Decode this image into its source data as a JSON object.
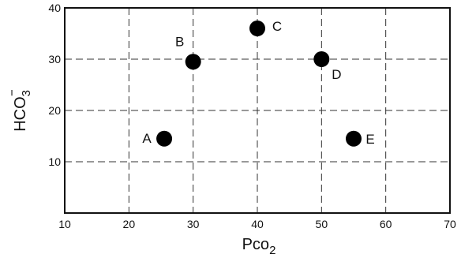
{
  "chart_data": {
    "type": "scatter",
    "title": "",
    "xlabel": {
      "main": "Pco",
      "sub": "2"
    },
    "ylabel": {
      "main": "HCO",
      "sub": "3",
      "sup": "−"
    },
    "xlim": [
      10,
      70
    ],
    "ylim": [
      0,
      40
    ],
    "xticks": [
      10,
      20,
      30,
      40,
      50,
      60,
      70
    ],
    "xtick_labels": [
      "10",
      "20",
      "30",
      "40",
      "50",
      "60",
      "70"
    ],
    "yticks": [
      10,
      20,
      30,
      40
    ],
    "ytick_labels": [
      "10",
      "20",
      "30",
      "40"
    ],
    "grid": true,
    "points": [
      {
        "label": "A",
        "x": 25.5,
        "y": 14.5
      },
      {
        "label": "B",
        "x": 30,
        "y": 29.5
      },
      {
        "label": "C",
        "x": 40,
        "y": 36
      },
      {
        "label": "D",
        "x": 50,
        "y": 30
      },
      {
        "label": "E",
        "x": 55,
        "y": 14.5
      }
    ],
    "marker_color": "#000000"
  }
}
